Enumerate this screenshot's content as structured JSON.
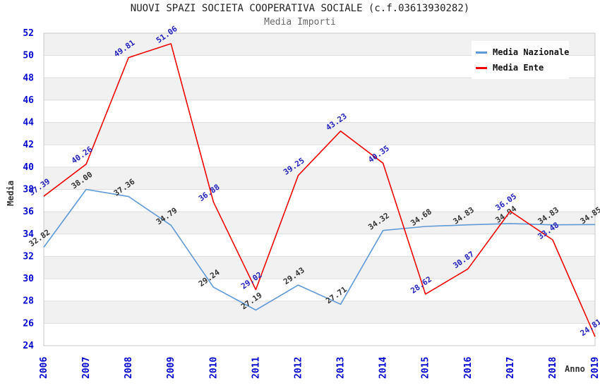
{
  "header": {
    "title": "NUOVI SPAZI SOCIETA COOPERATIVA SOCIALE (c.f.03613930282)",
    "subtitle": "Media Importi"
  },
  "legend": {
    "position": "top-right",
    "items": [
      {
        "label": "Media Nazionale",
        "color": "#5f9ad7"
      },
      {
        "label": "Media Ente",
        "color": "#ee0000"
      }
    ]
  },
  "axes": {
    "y_title": "Media",
    "x_title": "Anno",
    "y_min": 24,
    "y_max": 52,
    "y_step": 2,
    "y_ticks": [
      24,
      26,
      28,
      30,
      32,
      34,
      36,
      38,
      40,
      42,
      44,
      46,
      48,
      50,
      52
    ],
    "x_labels": [
      "2006",
      "2007",
      "2008",
      "2009",
      "2010",
      "2011",
      "2012",
      "2013",
      "2014",
      "2015",
      "2016",
      "2017",
      "2018",
      "2019"
    ]
  },
  "colors": {
    "tick_label": "#0000cc",
    "band": "#f1f1f1",
    "gridline": "#dddddd",
    "plot_border": "#c9c9c9",
    "nazionale_label": "#333333",
    "ente_label": "#2222bb"
  },
  "chart_data": {
    "type": "line",
    "title": "Media Importi",
    "xlabel": "Anno",
    "ylabel": "Media",
    "ylim": [
      24,
      52
    ],
    "grid": "horizontal-bands",
    "legend_position": "top-right",
    "x": [
      2006,
      2007,
      2008,
      2009,
      2010,
      2011,
      2012,
      2013,
      2014,
      2015,
      2016,
      2017,
      2018,
      2019
    ],
    "series": [
      {
        "name": "Media Nazionale",
        "color": "#5f9ad7",
        "label_color": "#333333",
        "values": [
          32.82,
          38.0,
          37.36,
          34.79,
          29.24,
          27.19,
          29.43,
          27.71,
          34.32,
          34.68,
          34.83,
          34.94,
          34.83,
          34.85
        ]
      },
      {
        "name": "Media Ente",
        "color": "#ee0000",
        "label_color": "#2222bb",
        "values": [
          37.39,
          40.26,
          49.81,
          51.06,
          36.88,
          29.02,
          39.25,
          43.23,
          40.35,
          28.62,
          30.87,
          36.05,
          33.48,
          24.81
        ]
      }
    ]
  }
}
